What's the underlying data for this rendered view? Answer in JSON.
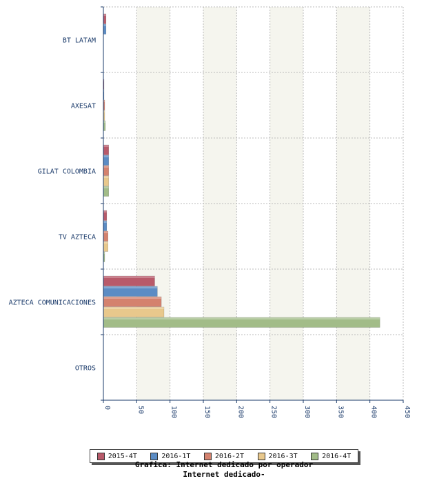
{
  "chart_data": {
    "type": "bar",
    "orientation": "horizontal",
    "title": "Grafica: Internet dedicado por operador",
    "subtitle": "Internet dedicado-",
    "xlabel": "",
    "ylabel": "",
    "xlim": [
      0,
      450
    ],
    "ticks": [
      0,
      50,
      100,
      150,
      200,
      250,
      300,
      350,
      400,
      450
    ],
    "categories": [
      "BT LATAM",
      "AXESAT",
      "GILAT COLOMBIA",
      "TV AZTECA",
      "AZTECA COMUNICACIONES",
      "OTROS"
    ],
    "series": [
      {
        "name": "2015-4T",
        "color": "#b85a6a",
        "values": [
          4,
          1,
          8,
          5,
          77,
          0
        ]
      },
      {
        "name": "2016-1T",
        "color": "#5b8cc4",
        "values": [
          4,
          1,
          8,
          5,
          81,
          0
        ]
      },
      {
        "name": "2016-2T",
        "color": "#d4826e",
        "values": [
          0,
          2,
          8,
          7,
          87,
          0
        ]
      },
      {
        "name": "2016-3T",
        "color": "#e8c88c",
        "values": [
          0,
          2,
          8,
          7,
          91,
          0
        ]
      },
      {
        "name": "2016-4T",
        "color": "#a2bc88",
        "values": [
          0,
          3,
          8,
          2,
          415,
          0
        ]
      }
    ],
    "grid": true,
    "legend_position": "bottom"
  }
}
